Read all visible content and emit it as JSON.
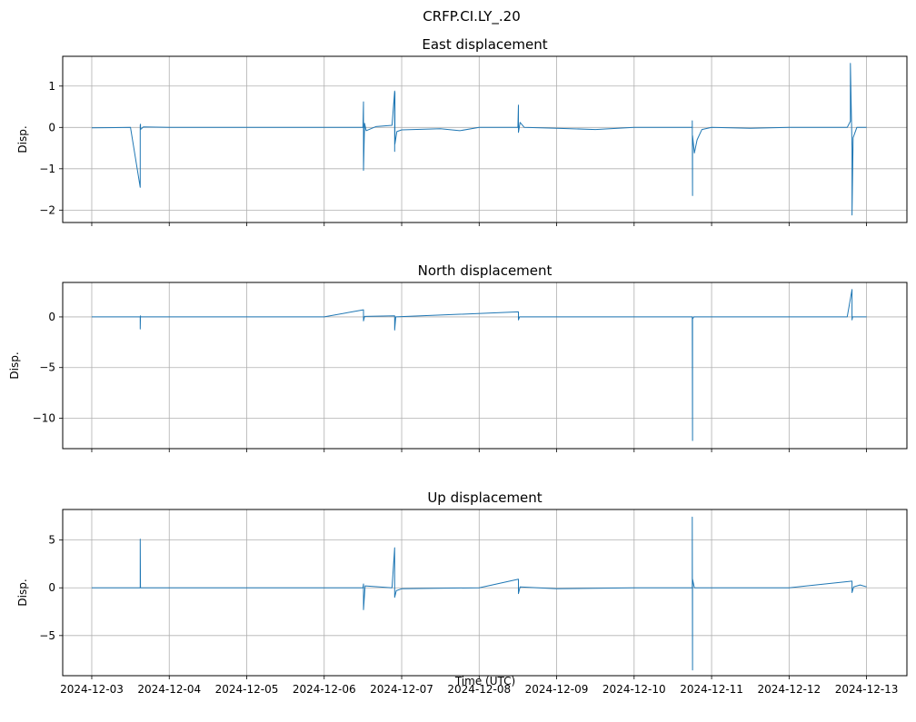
{
  "figure": {
    "suptitle": "CRFP.CI.LY_.20",
    "xlabel": "Time (UTC)",
    "x_tick_labels": [
      "2024-12-03",
      "2024-12-04",
      "2024-12-05",
      "2024-12-06",
      "2024-12-07",
      "2024-12-08",
      "2024-12-09",
      "2024-12-10",
      "2024-12-11",
      "2024-12-12",
      "2024-12-13"
    ],
    "series_color": "#1f77b4",
    "grid": true
  },
  "chart_data": [
    {
      "type": "line",
      "title": "East displacement",
      "ylabel": "Disp.",
      "xlim": [
        "2024-12-02T15:00",
        "2024-12-13T12:30"
      ],
      "ylim": [
        -2.3,
        1.72
      ],
      "yticks": [
        1,
        0,
        -1,
        -2
      ],
      "ytick_labels": [
        "1",
        "0",
        "−1",
        "−2"
      ],
      "series": [
        {
          "x": [
            "2024-12-03T00:00",
            "2024-12-03T12:00",
            "2024-12-03T15:00",
            "2024-12-03T15:00",
            "2024-12-03T15:06",
            "2024-12-03T15:06",
            "2024-12-03T16:00",
            "2024-12-04T00:00",
            "2024-12-05T00:00",
            "2024-12-06T00:00",
            "2024-12-06T12:00",
            "2024-12-06T12:10",
            "2024-12-06T12:10",
            "2024-12-06T12:30",
            "2024-12-06T13:00",
            "2024-12-06T16:00",
            "2024-12-06T21:00",
            "2024-12-06T21:50",
            "2024-12-06T21:50",
            "2024-12-06T21:55",
            "2024-12-06T21:55",
            "2024-12-06T22:30",
            "2024-12-07T00:00",
            "2024-12-07T12:00",
            "2024-12-07T18:00",
            "2024-12-08T00:00",
            "2024-12-08T12:00",
            "2024-12-08T12:10",
            "2024-12-08T12:10",
            "2024-12-08T12:40",
            "2024-12-08T14:00",
            "2024-12-09T00:00",
            "2024-12-09T12:00",
            "2024-12-10T00:00",
            "2024-12-10T18:00",
            "2024-12-10T18:00",
            "2024-12-10T18:06",
            "2024-12-10T18:06",
            "2024-12-10T18:40",
            "2024-12-10T19:30",
            "2024-12-10T21:00",
            "2024-12-11T00:00",
            "2024-12-11T12:00",
            "2024-12-12T00:00",
            "2024-12-12T18:00",
            "2024-12-12T19:00",
            "2024-12-12T19:00",
            "2024-12-12T19:30",
            "2024-12-12T19:30",
            "2024-12-12T19:50",
            "2024-12-12T21:00",
            "2024-12-13T00:00"
          ],
          "y": [
            -0.01,
            0.0,
            -1.45,
            0.05,
            0.08,
            -0.05,
            0.01,
            0.0,
            0.0,
            0.0,
            0.0,
            0.62,
            -1.04,
            0.1,
            -0.08,
            0.02,
            0.05,
            0.88,
            -0.58,
            0.85,
            -0.4,
            -0.1,
            -0.06,
            -0.03,
            -0.08,
            0.0,
            0.0,
            0.54,
            -0.12,
            0.12,
            0.0,
            -0.02,
            -0.05,
            0.0,
            0.0,
            0.16,
            -1.65,
            -0.2,
            -0.62,
            -0.3,
            -0.05,
            0.0,
            -0.02,
            0.0,
            0.0,
            0.15,
            1.55,
            -0.5,
            -2.12,
            -0.25,
            0.0,
            0.0
          ]
        }
      ]
    },
    {
      "type": "line",
      "title": "North displacement",
      "ylabel": "Disp.",
      "xlim": [
        "2024-12-02T15:00",
        "2024-12-13T12:30"
      ],
      "ylim": [
        -13.0,
        3.4
      ],
      "yticks": [
        0,
        -5,
        -10
      ],
      "ytick_labels": [
        "0",
        "−5",
        "−10"
      ],
      "series": [
        {
          "x": [
            "2024-12-03T00:00",
            "2024-12-03T15:00",
            "2024-12-03T15:00",
            "2024-12-03T15:06",
            "2024-12-03T15:06",
            "2024-12-04T00:00",
            "2024-12-06T00:00",
            "2024-12-06T12:10",
            "2024-12-06T12:10",
            "2024-12-06T12:30",
            "2024-12-06T21:50",
            "2024-12-06T21:50",
            "2024-12-06T22:10",
            "2024-12-08T12:10",
            "2024-12-08T12:10",
            "2024-12-08T12:30",
            "2024-12-10T00:00",
            "2024-12-10T18:00",
            "2024-12-10T18:06",
            "2024-12-10T18:06",
            "2024-12-10T18:30",
            "2024-12-12T00:00",
            "2024-12-12T18:00",
            "2024-12-12T19:30",
            "2024-12-12T19:30",
            "2024-12-12T19:40",
            "2024-12-13T00:00"
          ],
          "y": [
            0.0,
            0.0,
            -1.2,
            0.1,
            0.0,
            0.0,
            0.0,
            0.7,
            -0.4,
            0.05,
            0.1,
            -1.3,
            0.0,
            0.5,
            -0.3,
            0.0,
            0.0,
            0.0,
            -12.2,
            -0.2,
            0.0,
            0.0,
            0.0,
            2.7,
            -0.3,
            0.0,
            0.0
          ]
        }
      ]
    },
    {
      "type": "line",
      "title": "Up displacement",
      "ylabel": "Disp.",
      "xlim": [
        "2024-12-02T15:00",
        "2024-12-13T12:30"
      ],
      "ylim": [
        -9.2,
        8.2
      ],
      "yticks": [
        5,
        0,
        -5
      ],
      "ytick_labels": [
        "5",
        "0",
        "−5"
      ],
      "series": [
        {
          "x": [
            "2024-12-03T00:00",
            "2024-12-03T15:00",
            "2024-12-03T15:00",
            "2024-12-03T15:06",
            "2024-12-04T00:00",
            "2024-12-05T00:00",
            "2024-12-06T00:00",
            "2024-12-06T12:00",
            "2024-12-06T12:10",
            "2024-12-06T12:10",
            "2024-12-06T12:40",
            "2024-12-06T21:00",
            "2024-12-06T21:50",
            "2024-12-06T21:50",
            "2024-12-06T22:20",
            "2024-12-07T00:00",
            "2024-12-08T00:00",
            "2024-12-08T12:10",
            "2024-12-08T12:10",
            "2024-12-08T12:40",
            "2024-12-09T00:00",
            "2024-12-10T00:00",
            "2024-12-10T18:00",
            "2024-12-10T18:00",
            "2024-12-10T18:06",
            "2024-12-10T18:06",
            "2024-12-10T18:40",
            "2024-12-11T00:00",
            "2024-12-12T00:00",
            "2024-12-12T19:30",
            "2024-12-12T19:30",
            "2024-12-12T20:00",
            "2024-12-12T22:00",
            "2024-12-13T00:00"
          ],
          "y": [
            0.0,
            0.0,
            5.1,
            0.0,
            0.0,
            0.0,
            0.0,
            0.0,
            0.4,
            -2.3,
            0.2,
            0.0,
            4.2,
            -1.0,
            -0.3,
            -0.1,
            0.0,
            0.9,
            -0.6,
            0.1,
            -0.1,
            0.0,
            0.0,
            7.4,
            -8.6,
            0.9,
            0.0,
            0.0,
            0.0,
            0.7,
            -0.5,
            0.1,
            0.3,
            0.1
          ]
        }
      ]
    }
  ]
}
